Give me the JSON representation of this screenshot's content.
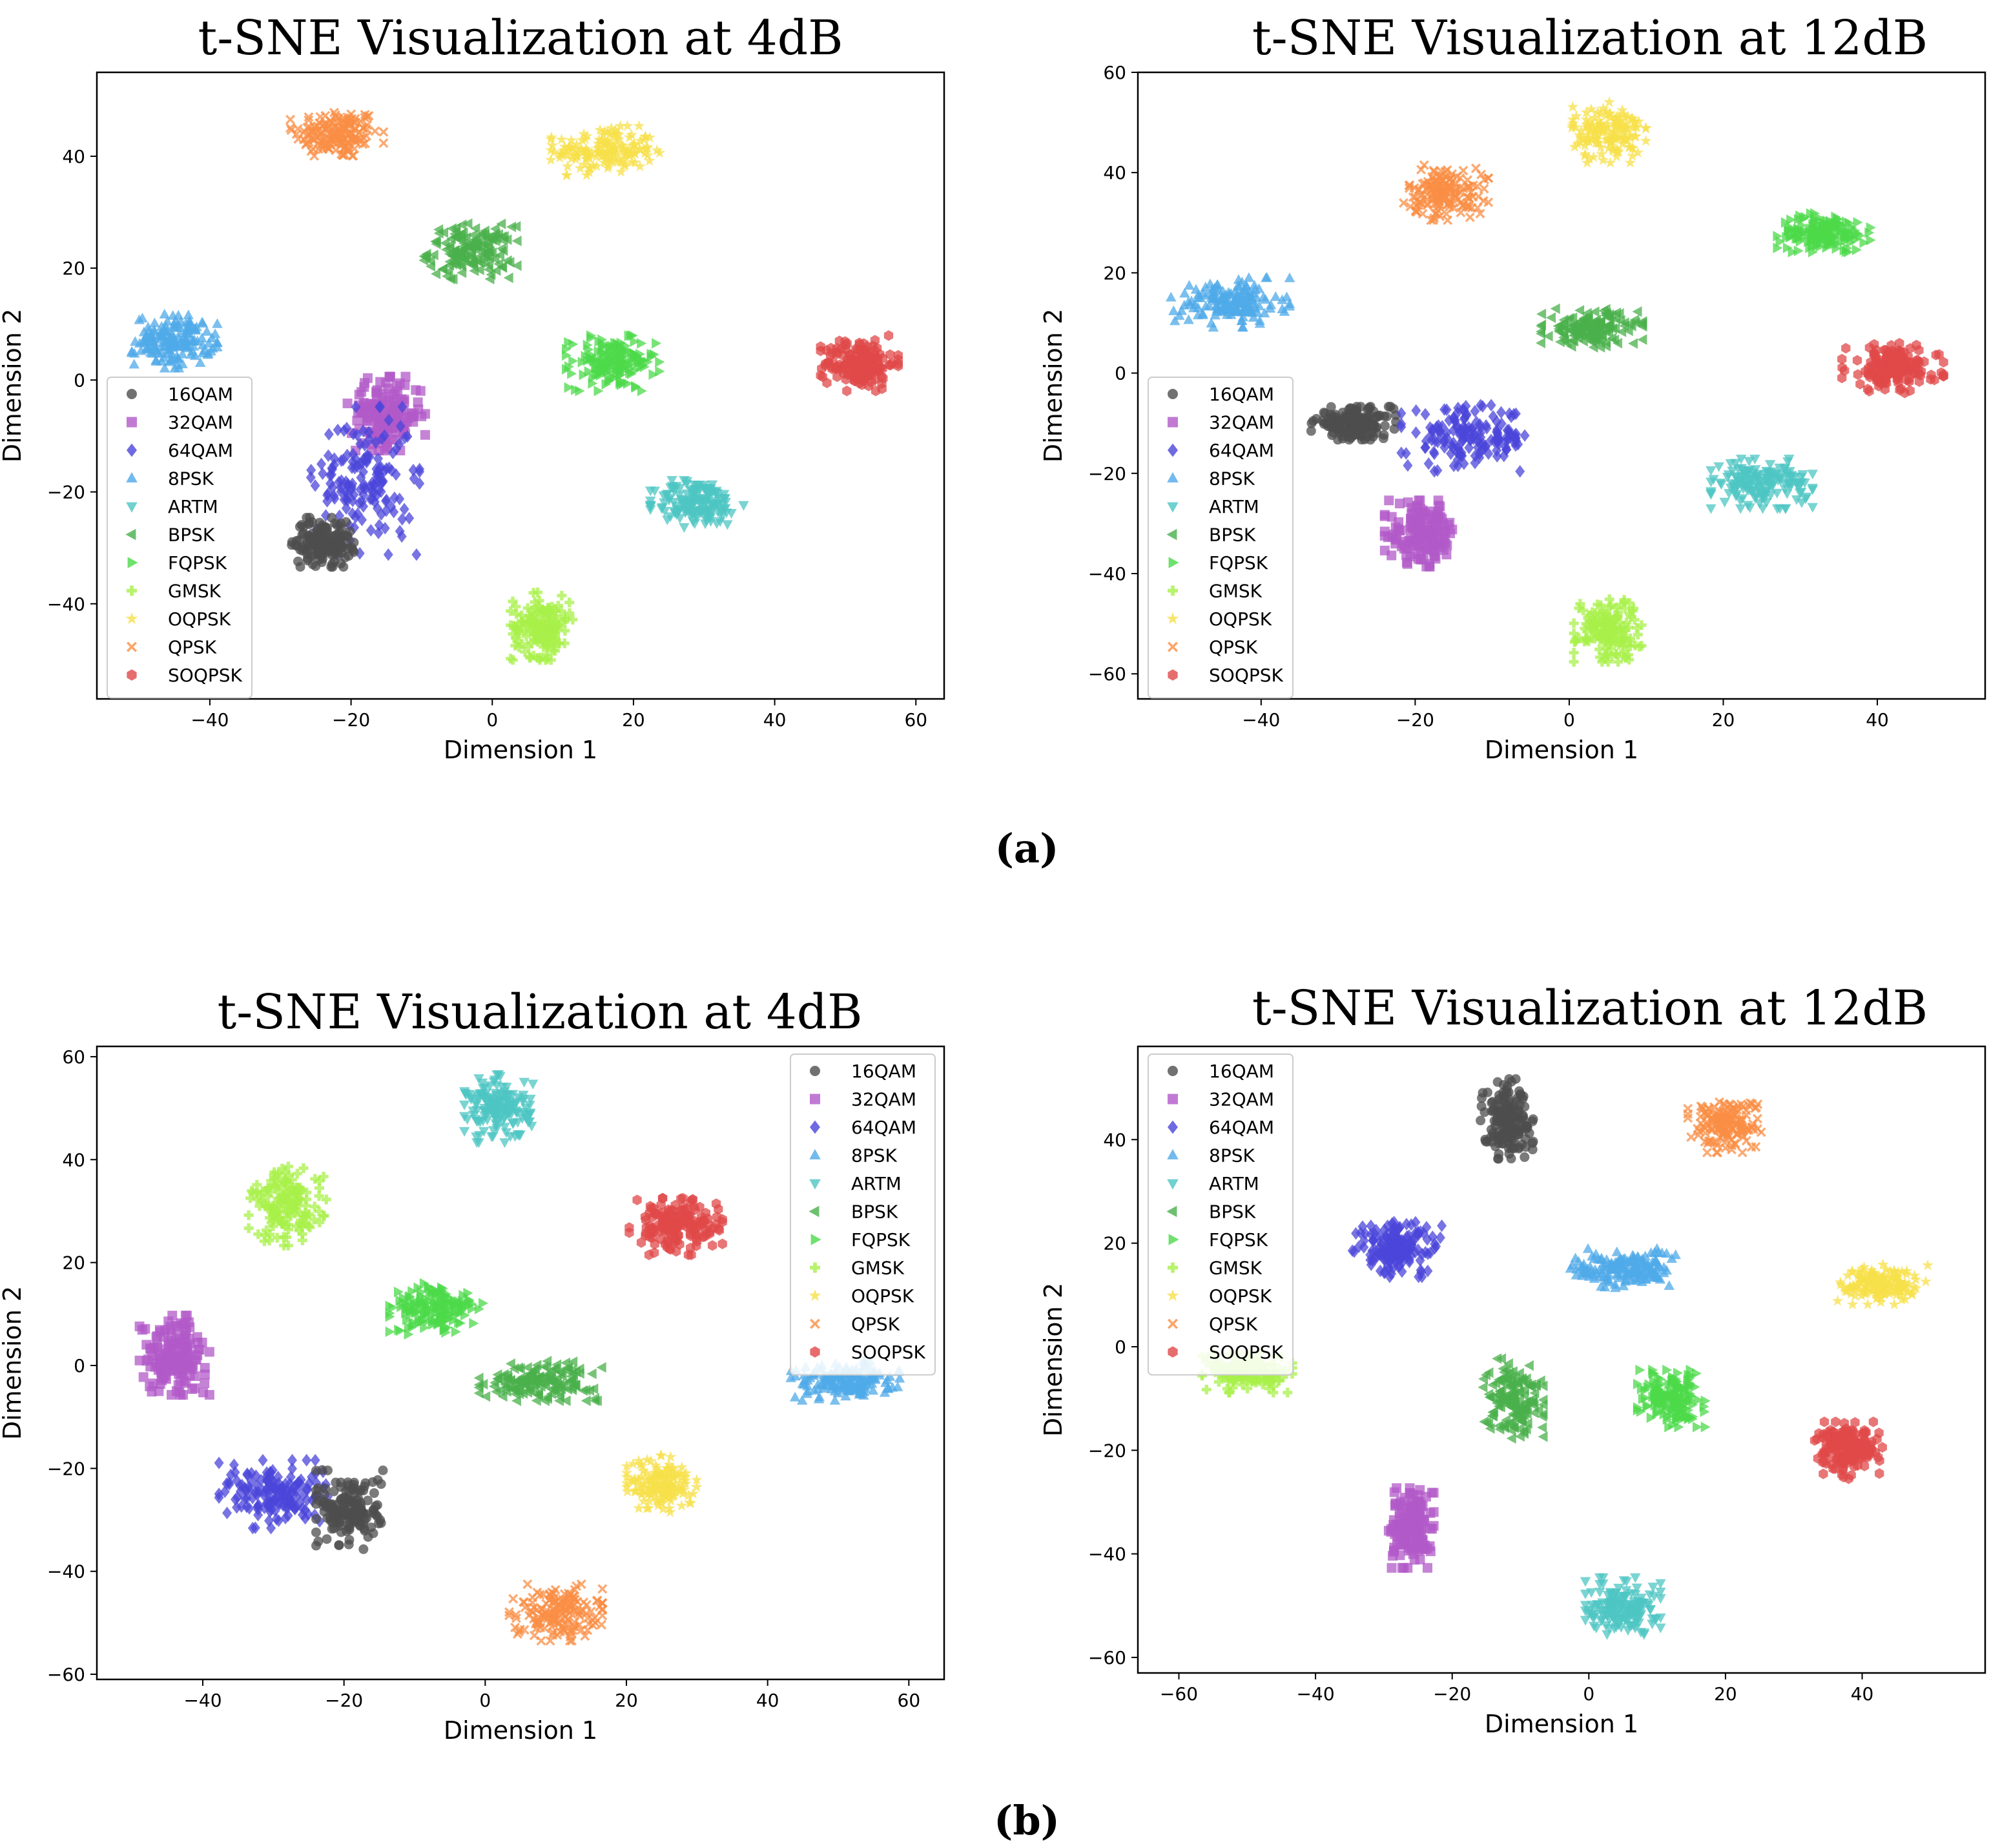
{
  "palette": {
    "16QAM": "#4d4d4d",
    "32QAM": "#b259c8",
    "64QAM": "#4b45d9",
    "8PSK": "#4fa9e8",
    "ARTM": "#4ec6c3",
    "BPSK": "#49b04b",
    "FQPSK": "#4cd94a",
    "GMSK": "#a8f04a",
    "OQPSK": "#f7e04a",
    "QPSK": "#fa8e44",
    "SOQPSK": "#e04848"
  },
  "markers": {
    "16QAM": "circle",
    "32QAM": "square",
    "64QAM": "diamond",
    "8PSK": "triangle-up",
    "ARTM": "triangle-down",
    "BPSK": "triangle-left",
    "FQPSK": "triangle-right",
    "GMSK": "plus",
    "OQPSK": "star",
    "QPSK": "x",
    "SOQPSK": "hexagon"
  },
  "captions": {
    "a": "(a)",
    "b": "(b)"
  },
  "chart_data": [
    {
      "type": "scatter",
      "title": "t-SNE Visualization at 4dB",
      "xlabel": "Dimension 1",
      "ylabel": "Dimension 2",
      "xlim": [
        -56,
        64
      ],
      "ylim": [
        -57,
        55
      ],
      "xticks": [
        -40,
        -20,
        0,
        20,
        40,
        60
      ],
      "yticks": [
        -40,
        -20,
        0,
        20,
        40
      ],
      "legend": [
        "16QAM",
        "32QAM",
        "64QAM",
        "8PSK",
        "ARTM",
        "BPSK",
        "FQPSK",
        "GMSK",
        "OQPSK",
        "QPSK",
        "SOQPSK"
      ],
      "legend_loc": "lower-left",
      "clusters": [
        {
          "cls": "QPSK",
          "cx": -22,
          "cy": 44,
          "rx": 6,
          "ry": 4.5
        },
        {
          "cls": "OQPSK",
          "cx": 16,
          "cy": 41,
          "rx": 7,
          "ry": 4
        },
        {
          "cls": "BPSK",
          "cx": -3,
          "cy": 23,
          "rx": 6,
          "ry": 4.5
        },
        {
          "cls": "8PSK",
          "cx": -45,
          "cy": 7,
          "rx": 5.5,
          "ry": 4.5
        },
        {
          "cls": "FQPSK",
          "cx": 17,
          "cy": 3,
          "rx": 6,
          "ry": 4.5
        },
        {
          "cls": "SOQPSK",
          "cx": 52,
          "cy": 3,
          "rx": 5,
          "ry": 4.5
        },
        {
          "cls": "ARTM",
          "cx": 29,
          "cy": -22,
          "rx": 6,
          "ry": 4
        },
        {
          "cls": "GMSK",
          "cx": 7,
          "cy": -44,
          "rx": 4,
          "ry": 5.5
        },
        {
          "cls": "32QAM",
          "cx": -15,
          "cy": -6,
          "rx": 5,
          "ry": 6
        },
        {
          "cls": "64QAM",
          "cx": -18,
          "cy": -18,
          "rx": 7,
          "ry": 12
        },
        {
          "cls": "16QAM",
          "cx": -24,
          "cy": -29,
          "rx": 4,
          "ry": 4
        }
      ]
    },
    {
      "type": "scatter",
      "title": "t-SNE Visualization at 12dB",
      "xlabel": "Dimension 1",
      "ylabel": "Dimension 2",
      "xlim": [
        -56,
        54
      ],
      "ylim": [
        -65,
        60
      ],
      "xticks": [
        -40,
        -20,
        0,
        20,
        40
      ],
      "yticks": [
        -60,
        -40,
        -20,
        0,
        20,
        40,
        60
      ],
      "legend": [
        "16QAM",
        "32QAM",
        "64QAM",
        "8PSK",
        "ARTM",
        "BPSK",
        "FQPSK",
        "GMSK",
        "OQPSK",
        "QPSK",
        "SOQPSK"
      ],
      "legend_loc": "lower-left",
      "clusters": [
        {
          "cls": "OQPSK",
          "cx": 5,
          "cy": 48,
          "rx": 4.5,
          "ry": 5.5
        },
        {
          "cls": "QPSK",
          "cx": -16,
          "cy": 36,
          "rx": 5,
          "ry": 5
        },
        {
          "cls": "FQPSK",
          "cx": 33,
          "cy": 28,
          "rx": 5.5,
          "ry": 3.5
        },
        {
          "cls": "8PSK",
          "cx": -44,
          "cy": 14,
          "rx": 7,
          "ry": 4.5
        },
        {
          "cls": "BPSK",
          "cx": 3,
          "cy": 9,
          "rx": 6,
          "ry": 3.5
        },
        {
          "cls": "SOQPSK",
          "cx": 42,
          "cy": 1,
          "rx": 6,
          "ry": 4.5
        },
        {
          "cls": "16QAM",
          "cx": -28,
          "cy": -10,
          "rx": 5,
          "ry": 3
        },
        {
          "cls": "64QAM",
          "cx": -13,
          "cy": -13,
          "rx": 8,
          "ry": 6
        },
        {
          "cls": "32QAM",
          "cx": -19,
          "cy": -32,
          "rx": 4.5,
          "ry": 6
        },
        {
          "cls": "ARTM",
          "cx": 25,
          "cy": -22,
          "rx": 6,
          "ry": 4.5
        },
        {
          "cls": "GMSK",
          "cx": 5,
          "cy": -51,
          "rx": 4,
          "ry": 6
        }
      ]
    },
    {
      "type": "scatter",
      "title": "t-SNE Visualization at 4dB",
      "xlabel": "Dimension 1",
      "ylabel": "Dimension 2",
      "xlim": [
        -55,
        65
      ],
      "ylim": [
        -61,
        62
      ],
      "xticks": [
        -40,
        -20,
        0,
        20,
        40,
        60
      ],
      "yticks": [
        -60,
        -40,
        -20,
        0,
        20,
        40,
        60
      ],
      "legend": [
        "16QAM",
        "32QAM",
        "64QAM",
        "8PSK",
        "ARTM",
        "BPSK",
        "FQPSK",
        "GMSK",
        "OQPSK",
        "QPSK",
        "SOQPSK"
      ],
      "legend_loc": "top-right",
      "clusters": [
        {
          "cls": "ARTM",
          "cx": 2,
          "cy": 50,
          "rx": 4.5,
          "ry": 6
        },
        {
          "cls": "GMSK",
          "cx": -28,
          "cy": 31,
          "rx": 5,
          "ry": 7
        },
        {
          "cls": "SOQPSK",
          "cx": 27,
          "cy": 27,
          "rx": 6,
          "ry": 5
        },
        {
          "cls": "FQPSK",
          "cx": -7,
          "cy": 11,
          "rx": 6,
          "ry": 4.5
        },
        {
          "cls": "32QAM",
          "cx": -44,
          "cy": 2,
          "rx": 4.5,
          "ry": 7
        },
        {
          "cls": "BPSK",
          "cx": 8,
          "cy": -3,
          "rx": 8,
          "ry": 3.5
        },
        {
          "cls": "8PSK",
          "cx": 51,
          "cy": -3,
          "rx": 7,
          "ry": 3.5
        },
        {
          "cls": "64QAM",
          "cx": -30,
          "cy": -25,
          "rx": 7,
          "ry": 6
        },
        {
          "cls": "16QAM",
          "cx": -19,
          "cy": -28,
          "rx": 4.5,
          "ry": 7
        },
        {
          "cls": "OQPSK",
          "cx": 25,
          "cy": -23,
          "rx": 4.5,
          "ry": 5
        },
        {
          "cls": "QPSK",
          "cx": 10,
          "cy": -48,
          "rx": 6,
          "ry": 5
        }
      ]
    },
    {
      "type": "scatter",
      "title": "t-SNE Visualization at 12dB",
      "xlabel": "Dimension 1",
      "ylabel": "Dimension 2",
      "xlim": [
        -66,
        58
      ],
      "ylim": [
        -63,
        58
      ],
      "xticks": [
        -60,
        -40,
        -20,
        0,
        20,
        40
      ],
      "yticks": [
        -60,
        -40,
        -20,
        0,
        20,
        40
      ],
      "legend": [
        "16QAM",
        "32QAM",
        "64QAM",
        "8PSK",
        "ARTM",
        "BPSK",
        "FQPSK",
        "GMSK",
        "OQPSK",
        "QPSK",
        "SOQPSK"
      ],
      "legend_loc": "top-left",
      "clusters": [
        {
          "cls": "16QAM",
          "cx": -12,
          "cy": 44,
          "rx": 3.5,
          "ry": 7
        },
        {
          "cls": "QPSK",
          "cx": 20,
          "cy": 43,
          "rx": 5,
          "ry": 5
        },
        {
          "cls": "64QAM",
          "cx": -28,
          "cy": 19,
          "rx": 6,
          "ry": 5
        },
        {
          "cls": "8PSK",
          "cx": 5,
          "cy": 15,
          "rx": 7,
          "ry": 3.5
        },
        {
          "cls": "OQPSK",
          "cx": 43,
          "cy": 12,
          "rx": 6,
          "ry": 3.5
        },
        {
          "cls": "GMSK",
          "cx": -50,
          "cy": -5,
          "rx": 6,
          "ry": 3.5
        },
        {
          "cls": "BPSK",
          "cx": -11,
          "cy": -10,
          "rx": 4,
          "ry": 7
        },
        {
          "cls": "FQPSK",
          "cx": 12,
          "cy": -10,
          "rx": 4.5,
          "ry": 5
        },
        {
          "cls": "SOQPSK",
          "cx": 38,
          "cy": -20,
          "rx": 4.5,
          "ry": 5
        },
        {
          "cls": "32QAM",
          "cx": -26,
          "cy": -35,
          "rx": 3,
          "ry": 7
        },
        {
          "cls": "ARTM",
          "cx": 5,
          "cy": -50,
          "rx": 5,
          "ry": 5
        }
      ]
    }
  ]
}
